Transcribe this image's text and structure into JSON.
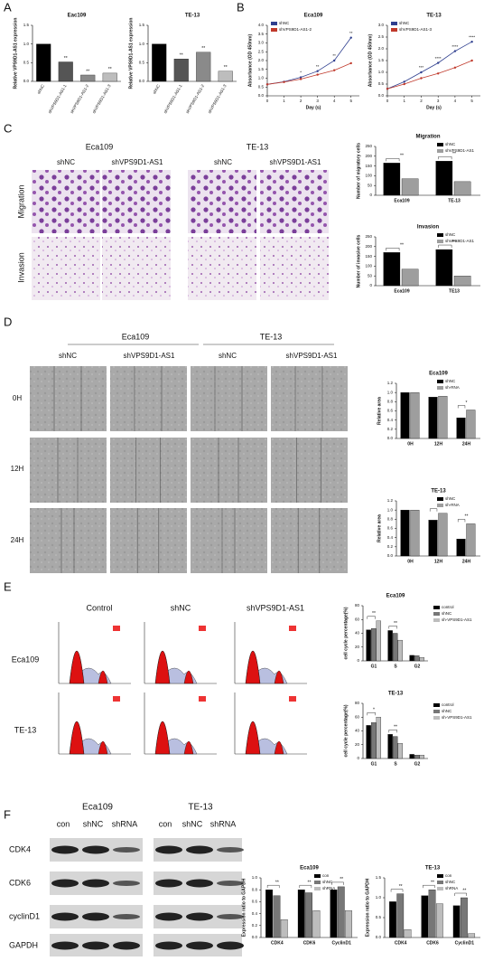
{
  "panel_letters": [
    "A",
    "B",
    "C",
    "D",
    "E",
    "F"
  ],
  "panel_c": {
    "columns": [
      "Eca109",
      "TE-13"
    ],
    "conditions": [
      "shNC",
      "shVPS9D1-AS1"
    ],
    "rows": [
      "Migration",
      "Invasion"
    ]
  },
  "panel_d": {
    "columns": [
      "Eca109",
      "TE-13"
    ],
    "conditions": [
      "shNC",
      "shVPS9D1-AS1"
    ],
    "rows": [
      "0H",
      "12H",
      "24H"
    ]
  },
  "panel_e": {
    "columns": [
      "Control",
      "shNC",
      "shVPS9D1-AS1"
    ],
    "rows": [
      "Eca109",
      "TE-13"
    ]
  },
  "panel_f": {
    "columns": [
      "Eca109",
      "TE-13"
    ],
    "lanes": [
      "con",
      "shNC",
      "shRNA"
    ],
    "proteins": [
      "CDK4",
      "CDK6",
      "cyclinD1",
      "GAPDH"
    ]
  },
  "chart_data": [
    {
      "type": "bar",
      "title": "Eac109",
      "ylabel": "Relative  VPS9D1-AS1 expression",
      "categories": [
        "shNC",
        "shVPS9D1-AS1-1",
        "shVPS9D1-AS1-2",
        "shVPS9D1-AS1-3"
      ],
      "values": [
        1.0,
        0.52,
        0.17,
        0.22
      ],
      "colors": [
        "#000000",
        "#555555",
        "#8a8a8a",
        "#bdbdbd"
      ],
      "significance": [
        null,
        "**",
        "**",
        "**"
      ],
      "ylim": [
        0,
        1.5
      ],
      "yticks": [
        {
          "value": 0,
          "label": "0.0"
        },
        0.5,
        {
          "value": 1,
          "label": "1.0"
        },
        1.5
      ]
    },
    {
      "type": "bar",
      "title": "TE-13",
      "ylabel": "Relative  VPS9D1-AS1 expression",
      "categories": [
        "shNC",
        "shVPS9D1-AS1-1",
        "shVPS9D1-AS1-2",
        "shVPS9D1-AS1-3"
      ],
      "values": [
        1.0,
        0.6,
        0.78,
        0.27
      ],
      "colors": [
        "#000000",
        "#555555",
        "#8a8a8a",
        "#bdbdbd"
      ],
      "significance": [
        null,
        "**",
        "**",
        "**"
      ],
      "ylim": [
        0,
        1.5
      ],
      "yticks": [
        {
          "value": 0,
          "label": "0.0"
        },
        0.5,
        {
          "value": 1,
          "label": "1.0"
        },
        1.5
      ]
    },
    {
      "type": "line",
      "title": "Eca109",
      "xlabel": "Day (s)",
      "ylabel": "Absorbance (OD 450nm)",
      "x": [
        0,
        1,
        2,
        3,
        4,
        5
      ],
      "series": [
        {
          "name": "shNC",
          "color": "#2f3f8f",
          "values": [
            0.65,
            0.8,
            1.05,
            1.4,
            2.0,
            3.3
          ]
        },
        {
          "name": "shVPS9D1-AS1-2",
          "color": "#c0392b",
          "values": [
            0.65,
            0.78,
            0.95,
            1.2,
            1.45,
            1.85
          ]
        }
      ],
      "significance": [
        null,
        null,
        "*",
        "**",
        "**",
        "**"
      ],
      "legend": "top-left",
      "xlim": [
        0,
        5.5
      ],
      "xticks": [
        0,
        1,
        2,
        3,
        4,
        5
      ],
      "ylim": [
        0,
        4
      ],
      "yticks": [
        {
          "value": 0,
          "label": "0.0"
        },
        0.5,
        {
          "value": 1,
          "label": "1.0"
        },
        1.5,
        {
          "value": 2,
          "label": "2.0"
        },
        2.5,
        {
          "value": 3,
          "label": "3.0"
        },
        3.5,
        {
          "value": 4,
          "label": "4.0"
        }
      ]
    },
    {
      "type": "line",
      "title": "TE-13",
      "xlabel": "Day (s)",
      "ylabel": "Absorbance (OD 450nm)",
      "x": [
        0,
        1,
        2,
        3,
        4,
        5
      ],
      "series": [
        {
          "name": "shNC",
          "color": "#2f3f8f",
          "values": [
            0.3,
            0.6,
            1.0,
            1.4,
            1.9,
            2.3
          ]
        },
        {
          "name": "shVPS9D1-AS1-3",
          "color": "#c0392b",
          "values": [
            0.3,
            0.5,
            0.75,
            0.95,
            1.2,
            1.5
          ]
        }
      ],
      "significance": [
        null,
        null,
        "***",
        "****",
        "****",
        "****"
      ],
      "legend": "top-left",
      "xlim": [
        0,
        5.5
      ],
      "xticks": [
        0,
        1,
        2,
        3,
        4,
        5
      ],
      "ylim": [
        0,
        3
      ],
      "yticks": [
        {
          "value": 0,
          "label": "0.0"
        },
        0.5,
        {
          "value": 1,
          "label": "1.0"
        },
        1.5,
        {
          "value": 2,
          "label": "2.0"
        },
        2.5,
        {
          "value": 3,
          "label": "3.0"
        }
      ]
    },
    {
      "type": "bar",
      "title": "Migration",
      "ylabel": "Number of migratory cells",
      "categories": [
        "Eca109",
        "TE-13"
      ],
      "series": [
        {
          "name": "shNC",
          "color": "#000000",
          "values": [
            165,
            175
          ]
        },
        {
          "name": "shVPS9D1-AS1",
          "color": "#9e9e9e",
          "values": [
            85,
            70
          ]
        }
      ],
      "significance": [
        "**",
        "**"
      ],
      "legend": "top-right",
      "ylim": [
        0,
        250
      ],
      "yticks": [
        0,
        50,
        100,
        150,
        200,
        250
      ]
    },
    {
      "type": "bar",
      "title": "Invasion",
      "ylabel": "Number of invasive cells",
      "categories": [
        "Eca109",
        "TE13"
      ],
      "series": [
        {
          "name": "shNC",
          "color": "#000000",
          "values": [
            170,
            185
          ]
        },
        {
          "name": "shVPS9D1-AS1",
          "color": "#9e9e9e",
          "values": [
            85,
            50
          ]
        }
      ],
      "significance": [
        "**",
        "***"
      ],
      "legend": "top-right",
      "ylim": [
        0,
        250
      ],
      "yticks": [
        0,
        50,
        100,
        150,
        200,
        250
      ]
    },
    {
      "type": "bar",
      "title": "Eca109",
      "ylabel": "Relative area",
      "categories": [
        "0H",
        "12H",
        "24H"
      ],
      "series": [
        {
          "name": "shNC",
          "color": "#000000",
          "values": [
            1.0,
            0.9,
            0.45
          ]
        },
        {
          "name": "sh-RNA",
          "color": "#9e9e9e",
          "values": [
            1.0,
            0.92,
            0.62
          ]
        }
      ],
      "significance": [
        null,
        null,
        "*"
      ],
      "legend": "top-right",
      "ylim": [
        0,
        1.2
      ],
      "yticks": [
        {
          "value": 0,
          "label": "0.0"
        },
        0.2,
        0.4,
        0.6,
        0.8,
        {
          "value": 1,
          "label": "1.0"
        },
        1.2
      ]
    },
    {
      "type": "bar",
      "title": "TE-13",
      "ylabel": "Relative area",
      "categories": [
        "0H",
        "12H",
        "24H"
      ],
      "series": [
        {
          "name": "shNC",
          "color": "#000000",
          "values": [
            1.0,
            0.78,
            0.37
          ]
        },
        {
          "name": "sh-RNA",
          "color": "#9e9e9e",
          "values": [
            1.0,
            0.93,
            0.7
          ]
        }
      ],
      "significance": [
        null,
        "*",
        "**"
      ],
      "legend": "top-right",
      "ylim": [
        0,
        1.2
      ],
      "yticks": [
        {
          "value": 0,
          "label": "0.0"
        },
        0.2,
        0.4,
        0.6,
        0.8,
        {
          "value": 1,
          "label": "1.0"
        },
        1.2
      ]
    },
    {
      "type": "bar",
      "title": "Eca109",
      "ylabel": "cell cycle percentage(%)",
      "categories": [
        "G1",
        "S",
        "G2"
      ],
      "series": [
        {
          "name": "control",
          "color": "#000000",
          "values": [
            45,
            44,
            8
          ]
        },
        {
          "name": "shNC",
          "color": "#777777",
          "values": [
            47,
            40,
            7.5
          ]
        },
        {
          "name": "sh-VPS9D1-AS1",
          "color": "#bdbdbd",
          "values": [
            58,
            30,
            5
          ]
        }
      ],
      "significance": [
        "**",
        "**",
        null
      ],
      "legend": "right",
      "ylim": [
        0,
        80
      ],
      "yticks": [
        0,
        20,
        40,
        60,
        80
      ]
    },
    {
      "type": "bar",
      "title": "TE-13",
      "ylabel": "cell cycle percentage(%)",
      "categories": [
        "G1",
        "S",
        "G2"
      ],
      "series": [
        {
          "name": "control",
          "color": "#000000",
          "values": [
            48,
            35,
            6
          ]
        },
        {
          "name": "shNC",
          "color": "#777777",
          "values": [
            52,
            32,
            5
          ]
        },
        {
          "name": "sh-VPS9D1-AS1",
          "color": "#bdbdbd",
          "values": [
            60,
            22,
            5
          ]
        }
      ],
      "significance": [
        "*",
        "**",
        null
      ],
      "legend": "right",
      "ylim": [
        0,
        80
      ],
      "yticks": [
        0,
        20,
        40,
        60,
        80
      ]
    },
    {
      "type": "bar",
      "title": "Eca109",
      "ylabel": "Expression ratio to GAPDH",
      "categories": [
        "CDK4",
        "CDK6",
        "CyclinD1"
      ],
      "series": [
        {
          "name": "con",
          "color": "#000000",
          "values": [
            0.8,
            0.8,
            0.8
          ]
        },
        {
          "name": "shNC",
          "color": "#777777",
          "values": [
            0.7,
            0.75,
            0.85
          ]
        },
        {
          "name": "shRNA",
          "color": "#bdbdbd",
          "values": [
            0.3,
            0.45,
            0.45
          ]
        }
      ],
      "significance": [
        "**",
        "**",
        "**"
      ],
      "legend": "top-right",
      "ylim": [
        0,
        1.0
      ],
      "yticks": [
        {
          "value": 0,
          "label": "0.0"
        },
        0.2,
        0.4,
        0.6,
        0.8,
        {
          "value": 1,
          "label": "1.0"
        }
      ]
    },
    {
      "type": "bar",
      "title": "TE-13",
      "ylabel": "Expression ratio to GAPDH",
      "categories": [
        "CDK4",
        "CDK6",
        "CyclinD1"
      ],
      "series": [
        {
          "name": "con",
          "color": "#000000",
          "values": [
            0.9,
            1.05,
            0.8
          ]
        },
        {
          "name": "shNC",
          "color": "#777777",
          "values": [
            1.1,
            1.2,
            1.0
          ]
        },
        {
          "name": "shRNA",
          "color": "#bdbdbd",
          "values": [
            0.2,
            0.85,
            0.1
          ]
        }
      ],
      "significance": [
        "**",
        "**",
        "**"
      ],
      "legend": "top-right",
      "ylim": [
        0,
        1.5
      ],
      "yticks": [
        {
          "value": 0,
          "label": "0.0"
        },
        0.5,
        {
          "value": 1,
          "label": "1.0"
        },
        1.5
      ]
    }
  ]
}
